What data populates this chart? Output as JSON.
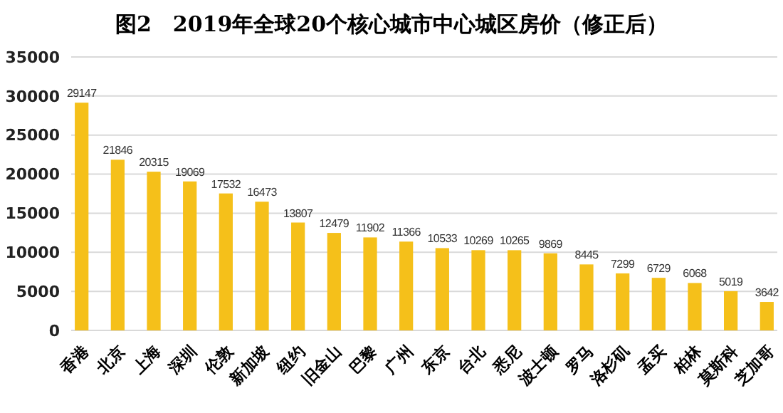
{
  "chart_data": {
    "type": "bar",
    "title": "图2　2019年全球20个核心城市中心城区房价（修正后）",
    "categories": [
      "香港",
      "北京",
      "上海",
      "深圳",
      "伦敦",
      "新加坡",
      "纽约",
      "旧金山",
      "巴黎",
      "广州",
      "东京",
      "台北",
      "悉尼",
      "波士顿",
      "罗马",
      "洛杉矶",
      "孟买",
      "柏林",
      "莫斯科",
      "芝加哥"
    ],
    "values": [
      29147,
      21846,
      20315,
      19069,
      17532,
      16473,
      13807,
      12479,
      11902,
      11366,
      10533,
      10269,
      10265,
      9869,
      8445,
      7299,
      6729,
      6068,
      5019,
      3642
    ],
    "color": "#f5c01a",
    "ylim": [
      0,
      35000
    ],
    "yticks": [
      0,
      5000,
      10000,
      15000,
      20000,
      25000,
      30000,
      35000
    ],
    "grid": "y",
    "data_labels": true
  }
}
